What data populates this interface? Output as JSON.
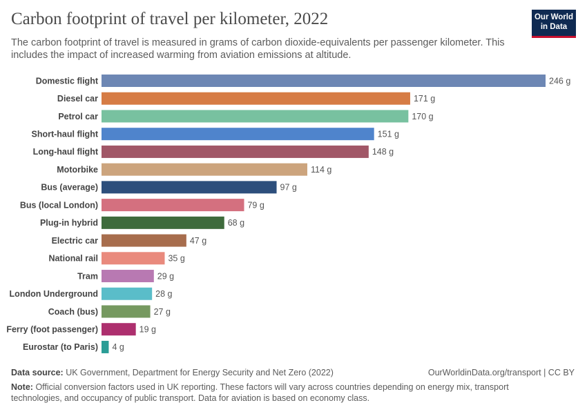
{
  "chart_data": {
    "type": "bar",
    "title": "Carbon footprint of travel per kilometer, 2022",
    "subtitle": "The carbon footprint of travel is measured in grams of carbon dioxide-equivalents per passenger kilometer. This includes the impact of increased warming from aviation emissions at altitude.",
    "categories": [
      "Domestic flight",
      "Diesel car",
      "Petrol car",
      "Short-haul flight",
      "Long-haul flight",
      "Motorbike",
      "Bus (average)",
      "Bus (local London)",
      "Plug-in hybrid",
      "Electric car",
      "National rail",
      "Tram",
      "London Underground",
      "Coach (bus)",
      "Ferry (foot passenger)",
      "Eurostar (to Paris)"
    ],
    "values": [
      246,
      171,
      170,
      151,
      148,
      114,
      97,
      79,
      68,
      47,
      35,
      29,
      28,
      27,
      19,
      4
    ],
    "value_labels": [
      "246 g",
      "171 g",
      "170 g",
      "151 g",
      "148 g",
      "114 g",
      "97 g",
      "79 g",
      "68 g",
      "47 g",
      "35 g",
      "29 g",
      "28 g",
      "27 g",
      "19 g",
      "4 g"
    ],
    "colors": [
      "#6d87b4",
      "#d67c45",
      "#78c1a0",
      "#4f84cc",
      "#a15767",
      "#cca47d",
      "#2d4f7c",
      "#d4707f",
      "#3e6b3c",
      "#a76d4d",
      "#e98a7d",
      "#b879b2",
      "#5abdc9",
      "#769960",
      "#ad2f6e",
      "#2a9d96"
    ],
    "source_label": "Data source:",
    "source": "UK Government, Department for Energy Security and Net Zero (2022)",
    "url": "OurWorldinData.org/transport | CC BY",
    "note_label": "Note:",
    "note": "Official conversion factors used in UK reporting. These factors will vary across countries depending on energy mix, transport technologies, and occupancy of public transport. Data for aviation is based on economy class.",
    "logo": [
      "Our World",
      "in Data"
    ]
  }
}
